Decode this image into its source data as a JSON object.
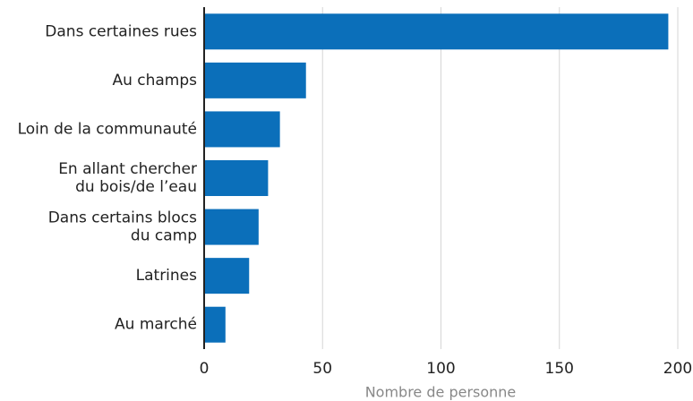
{
  "chart_data": {
    "type": "barh",
    "categories": [
      "Dans certaines rues",
      "Au champs",
      "Loin de la communauté",
      "En allant chercher\ndu bois/de l’eau",
      "Dans certains blocs\ndu camp",
      "Latrines",
      "Au marché"
    ],
    "values": [
      196,
      43,
      32,
      27,
      23,
      19,
      9
    ],
    "color": "#0b6fba",
    "xlim": [
      0,
      200
    ],
    "xticks": [
      0,
      50,
      100,
      150,
      200
    ],
    "xlabel": "Nombre de personne",
    "grid": true
  }
}
